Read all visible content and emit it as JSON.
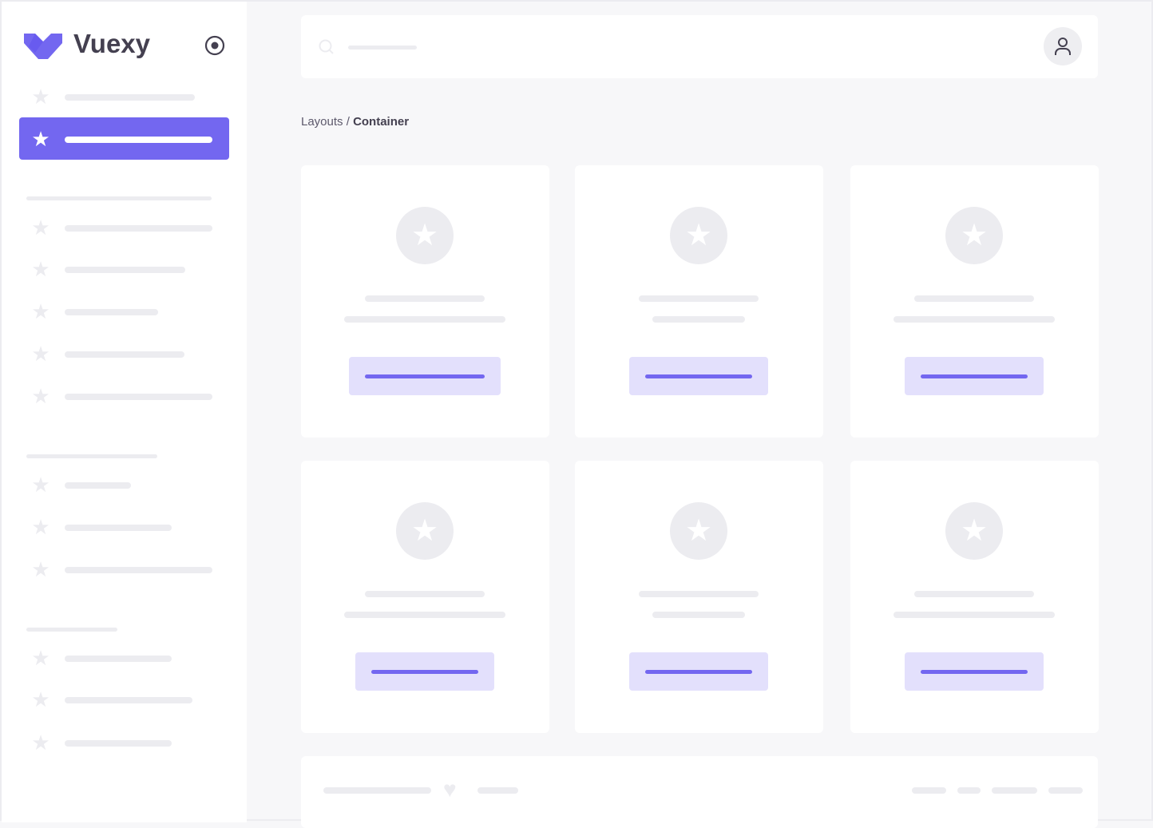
{
  "brand": {
    "name": "Vuexy",
    "color": "#7367F0"
  },
  "sidebar": {
    "toggle_icon": "radio-circle-icon",
    "item_icon": "star-icon"
  },
  "breadcrumb": {
    "parent": "Layouts",
    "separator": " / ",
    "current": "Container"
  },
  "header": {
    "search_icon": "search-icon",
    "avatar_icon": "user-icon"
  },
  "footer": {
    "icon": "heart-icon"
  }
}
